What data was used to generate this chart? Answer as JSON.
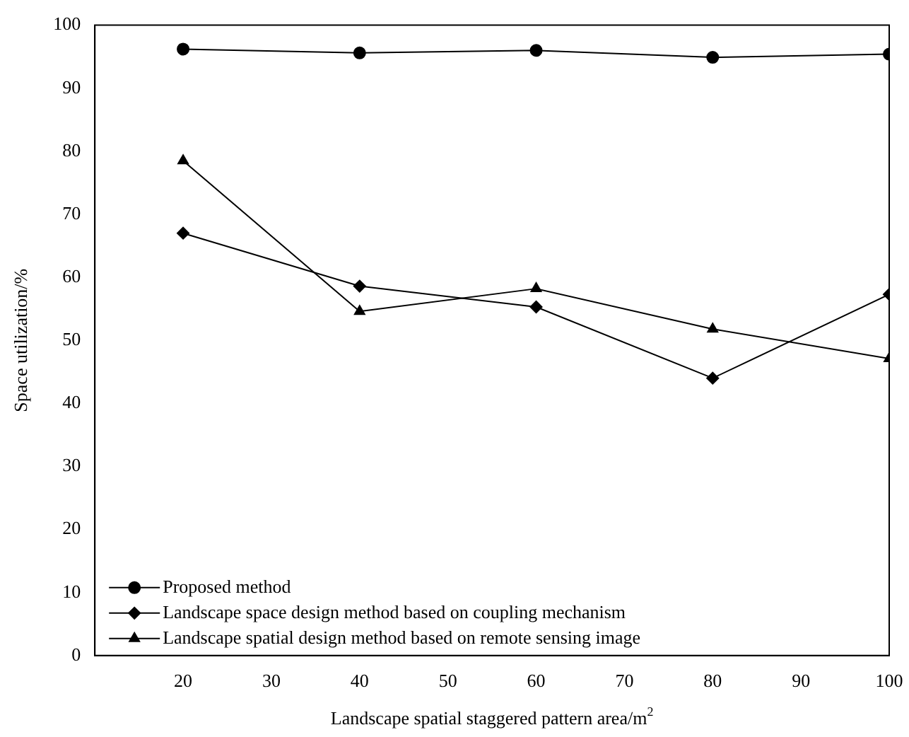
{
  "chart_data": {
    "type": "line",
    "xlabel": "Landscape spatial staggered pattern area/m$^{2}$",
    "ylabel": "Space utilization/%",
    "x": [
      20,
      40,
      60,
      80,
      100
    ],
    "xlim": [
      10,
      100
    ],
    "xticks": [
      20,
      30,
      40,
      50,
      60,
      70,
      80,
      90,
      100
    ],
    "ylim": [
      0,
      100
    ],
    "yticks": [
      0,
      10,
      20,
      30,
      40,
      50,
      60,
      70,
      80,
      90,
      100
    ],
    "grid": false,
    "legend": "bottom left",
    "line_style": "solid",
    "series": [
      {
        "name": "Proposed method",
        "color": "#000000",
        "marker": "circle",
        "values": [
          96.2,
          95.6,
          96.0,
          94.9,
          95.4
        ]
      },
      {
        "name": "Landscape space design method based on coupling mechanism",
        "color": "#000000",
        "marker": "diamond",
        "values": [
          67.0,
          58.6,
          55.3,
          44.0,
          57.3
        ]
      },
      {
        "name": "Landscape spatial design method based on remote sensing image",
        "color": "#000000",
        "marker": "triangle",
        "values": [
          78.5,
          54.6,
          58.2,
          51.8,
          47.1
        ]
      }
    ]
  }
}
